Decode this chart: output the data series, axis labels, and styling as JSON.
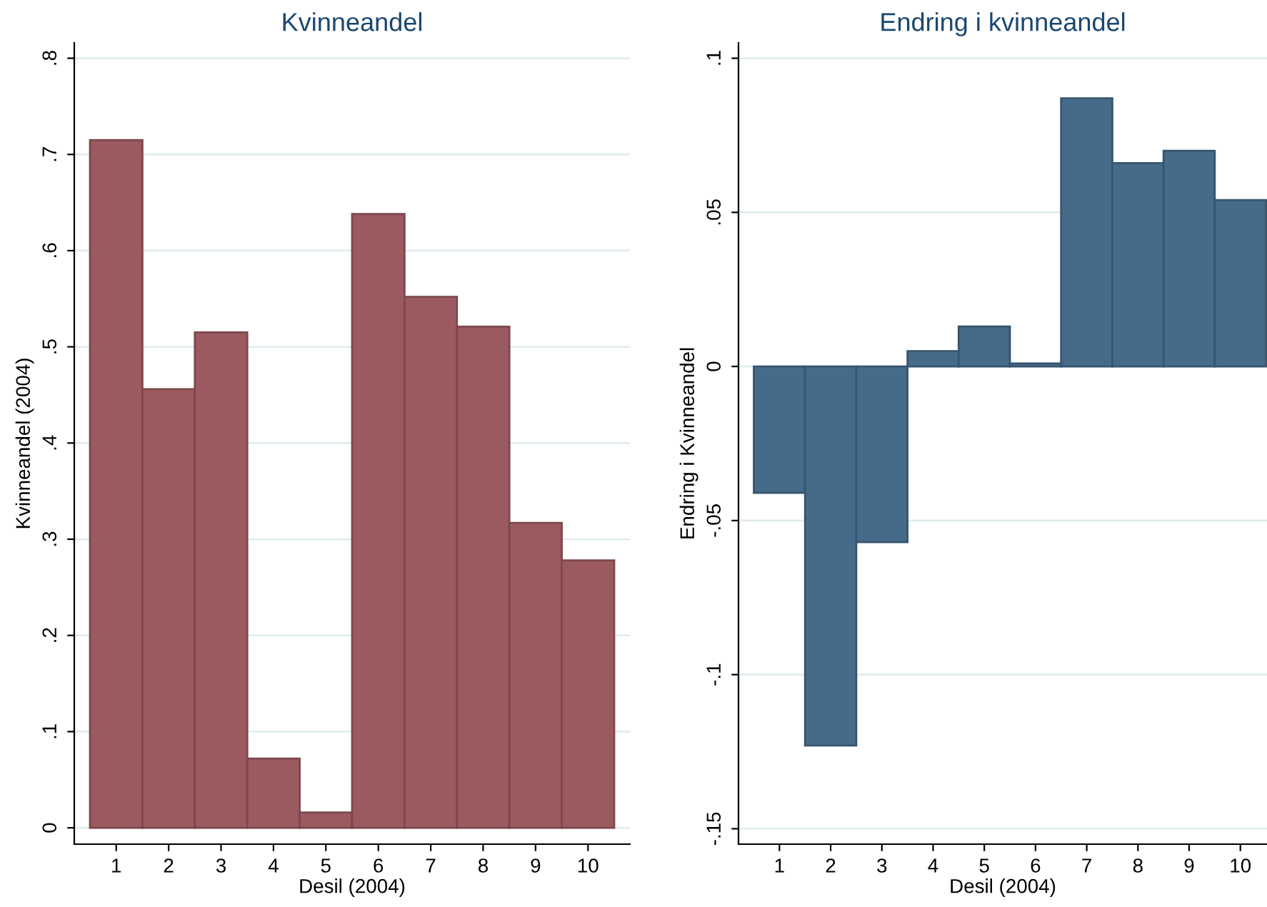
{
  "chart_data": [
    {
      "type": "bar",
      "title": "Kvinneandel",
      "xlabel": "Desil (2004)",
      "ylabel": "Kvinneandel (2004)",
      "categories": [
        "1",
        "2",
        "3",
        "4",
        "5",
        "6",
        "7",
        "8",
        "9",
        "10"
      ],
      "series": [
        {
          "color": "#9b5a60",
          "values": [
            0.715,
            0.456,
            0.515,
            0.072,
            0.016,
            0.638,
            0.552,
            0.521,
            0.317,
            0.278
          ]
        }
      ],
      "ylim": [
        -0.017,
        0.816
      ],
      "yticks": [
        0,
        {
          "value": 0.1,
          "label": ".1"
        },
        {
          "value": 0.2,
          "label": ".2"
        },
        {
          "value": 0.3,
          "label": ".3"
        },
        {
          "value": 0.4,
          "label": ".4"
        },
        {
          "value": 0.5,
          "label": ".5"
        },
        {
          "value": 0.6,
          "label": ".6"
        },
        {
          "value": 0.7,
          "label": ".7"
        },
        {
          "value": 0.8,
          "label": ".8"
        }
      ],
      "grid": "y",
      "legend": false
    },
    {
      "type": "bar",
      "title": "Endring i kvinneandel",
      "xlabel": "Desil (2004)",
      "ylabel": "Endring i Kvinneandel",
      "categories": [
        "1",
        "2",
        "3",
        "4",
        "5",
        "6",
        "7",
        "8",
        "9",
        "10"
      ],
      "series": [
        {
          "color": "#466a8a",
          "values": [
            -0.041,
            -0.123,
            -0.057,
            0.005,
            0.013,
            0.001,
            0.087,
            0.066,
            0.07,
            0.054
          ]
        }
      ],
      "ylim": [
        -0.155,
        0.105
      ],
      "yticks": [
        {
          "value": -0.15,
          "label": "-.15"
        },
        {
          "value": -0.1,
          "label": "-.1"
        },
        {
          "value": -0.05,
          "label": "-.05"
        },
        0,
        {
          "value": 0.05,
          "label": ".05"
        },
        {
          "value": 0.1,
          "label": ".1"
        }
      ],
      "grid": "y",
      "legend": false
    }
  ]
}
